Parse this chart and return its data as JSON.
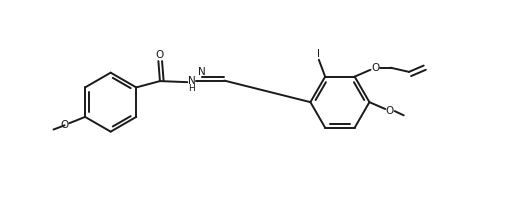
{
  "background_color": "#ffffff",
  "line_color": "#1a1a1a",
  "line_width": 1.4,
  "font_size": 7.5,
  "figure_width": 5.27,
  "figure_height": 1.98,
  "dpi": 100,
  "xlim": [
    0,
    10
  ],
  "ylim": [
    0,
    3.76
  ]
}
